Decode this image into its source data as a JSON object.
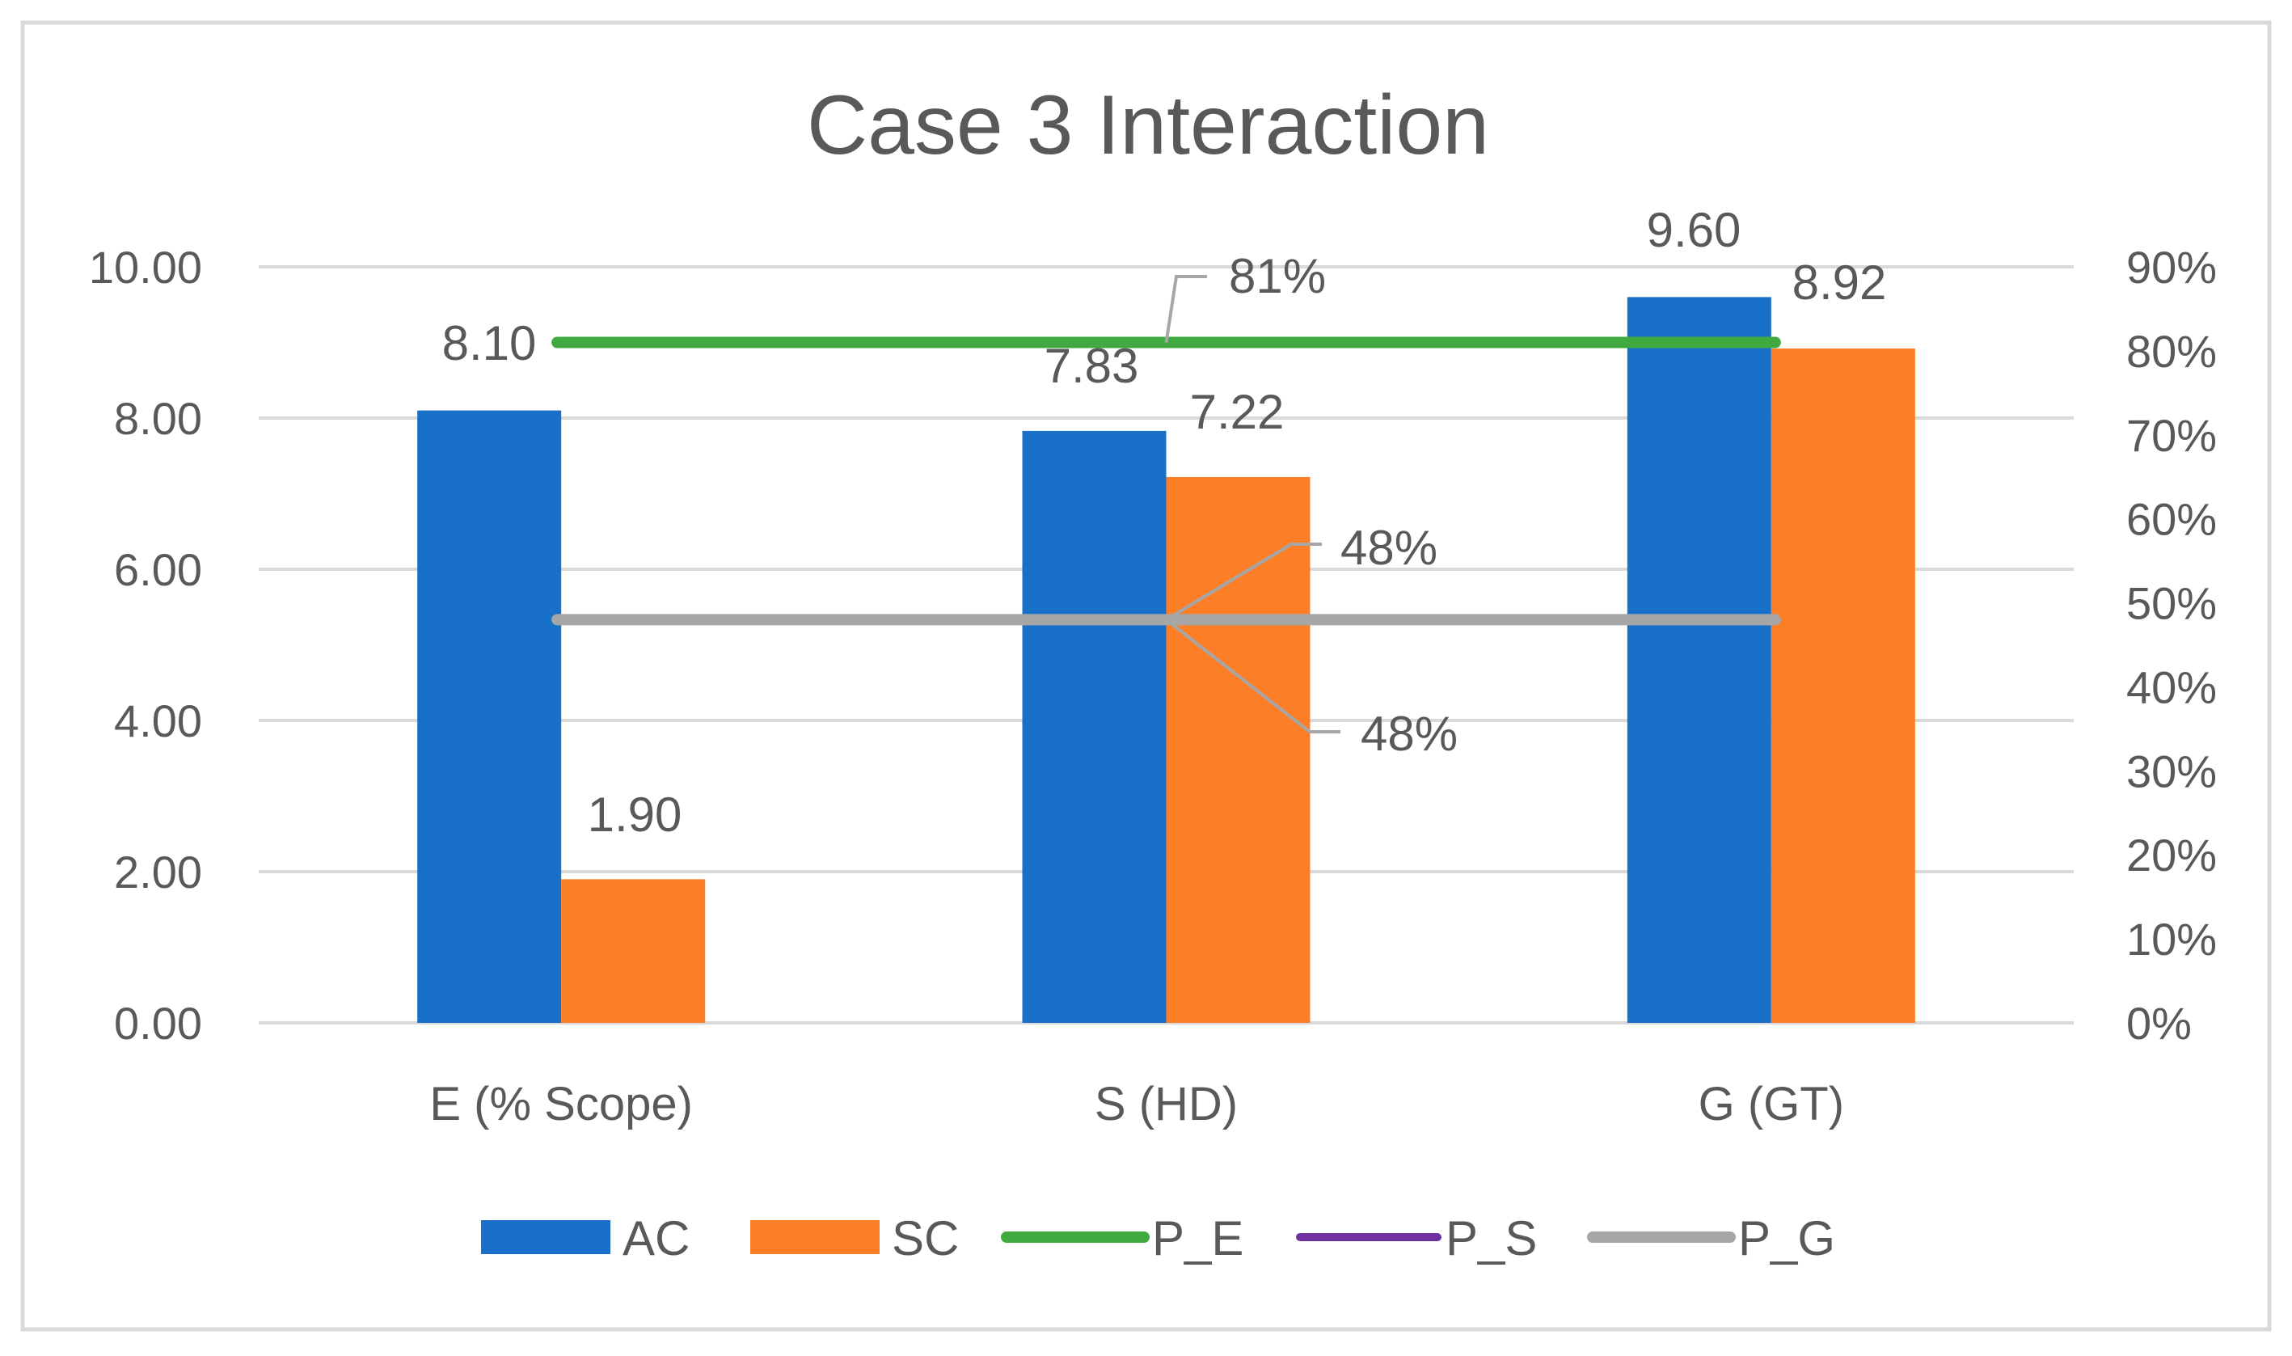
{
  "chart_data": {
    "type": "bar",
    "title": "Case 3 Interaction",
    "categories": [
      "E (% Scope)",
      "S (HD)",
      "G (GT)"
    ],
    "series": [
      {
        "name": "AC",
        "kind": "bar",
        "axis": "left",
        "values": [
          8.1,
          7.83,
          9.6
        ],
        "labels": [
          "8.10",
          "7.83",
          "9.60"
        ]
      },
      {
        "name": "SC",
        "kind": "bar",
        "axis": "left",
        "values": [
          1.9,
          7.22,
          8.92
        ],
        "labels": [
          "1.90",
          "7.22",
          "8.92"
        ]
      },
      {
        "name": "P_E",
        "kind": "line",
        "axis": "right",
        "values": [
          0.81,
          0.81,
          0.81
        ],
        "labels": [
          "81%"
        ]
      },
      {
        "name": "P_S",
        "kind": "line",
        "axis": "right",
        "values": [
          0.48,
          0.48,
          0.48
        ],
        "labels": [
          "48%"
        ]
      },
      {
        "name": "P_G",
        "kind": "line",
        "axis": "right",
        "values": [
          0.48,
          0.48,
          0.48
        ],
        "labels": [
          "48%"
        ]
      }
    ],
    "y_left": {
      "min": 0,
      "max": 10,
      "ticks": [
        "0.00",
        "2.00",
        "4.00",
        "6.00",
        "8.00",
        "10.00"
      ]
    },
    "y_right": {
      "min": 0,
      "max": 0.9,
      "ticks": [
        "0%",
        "10%",
        "20%",
        "30%",
        "40%",
        "50%",
        "60%",
        "70%",
        "80%",
        "90%"
      ]
    },
    "grid": true,
    "legend_position": "bottom",
    "colors": {
      "AC": "#1870C8",
      "SC": "#FC7F28",
      "P_E": "#40AA40",
      "P_S": "#7030A0",
      "P_G": "#A6A6A6",
      "grid": "#D9D9D9",
      "text": "#595959",
      "leader": "#A6A6A6",
      "border": "#D9D9D9"
    }
  }
}
